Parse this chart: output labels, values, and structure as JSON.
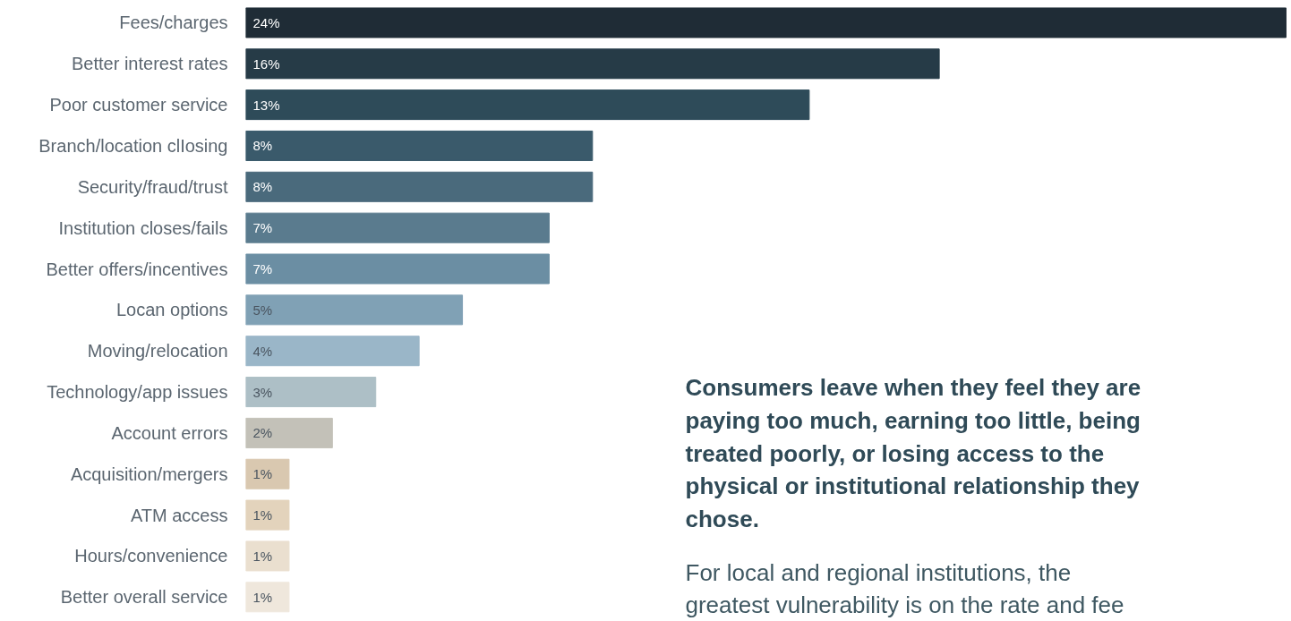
{
  "chart_data": {
    "type": "bar",
    "orientation": "horizontal",
    "categories": [
      "Fees/charges",
      "Better interest rates",
      "Poor customer service",
      "Branch/location clIosing",
      "Security/fraud/trust",
      "Institution closes/fails",
      "Better offers/incentives",
      "Locan options",
      "Moving/relocation",
      "Technology/app issues",
      "Account errors",
      "Acquisition/mergers",
      "ATM access",
      "Hours/convenience",
      "Better overall service"
    ],
    "values": [
      24,
      16,
      13,
      8,
      8,
      7,
      7,
      5,
      4,
      3,
      2,
      1,
      1,
      1,
      1
    ],
    "value_labels": [
      "24%",
      "16%",
      "13%",
      "8%",
      "8%",
      "7%",
      "7%",
      "5%",
      "4%",
      "3%",
      "2%",
      "1%",
      "1%",
      "1%",
      "1%"
    ],
    "colors": [
      "#1f2c36",
      "#263b47",
      "#2e4b59",
      "#3a5a6b",
      "#4a6a7c",
      "#5a7b8e",
      "#6b8ea3",
      "#80a1b5",
      "#9ab6c8",
      "#adbfc6",
      "#c3c1b8",
      "#d9c8b0",
      "#e3d3bc",
      "#eadfcf",
      "#efe7dc"
    ],
    "grid": false,
    "tick_labels": "y",
    "annotations": [
      "Consumers leave when they feel they are paying too much, earning too little, being treated poorly, or losing access to the physical or institutional relationship they chose.",
      "For local and regional institutions, the greatest vulnerability is on the rate and fee"
    ]
  }
}
